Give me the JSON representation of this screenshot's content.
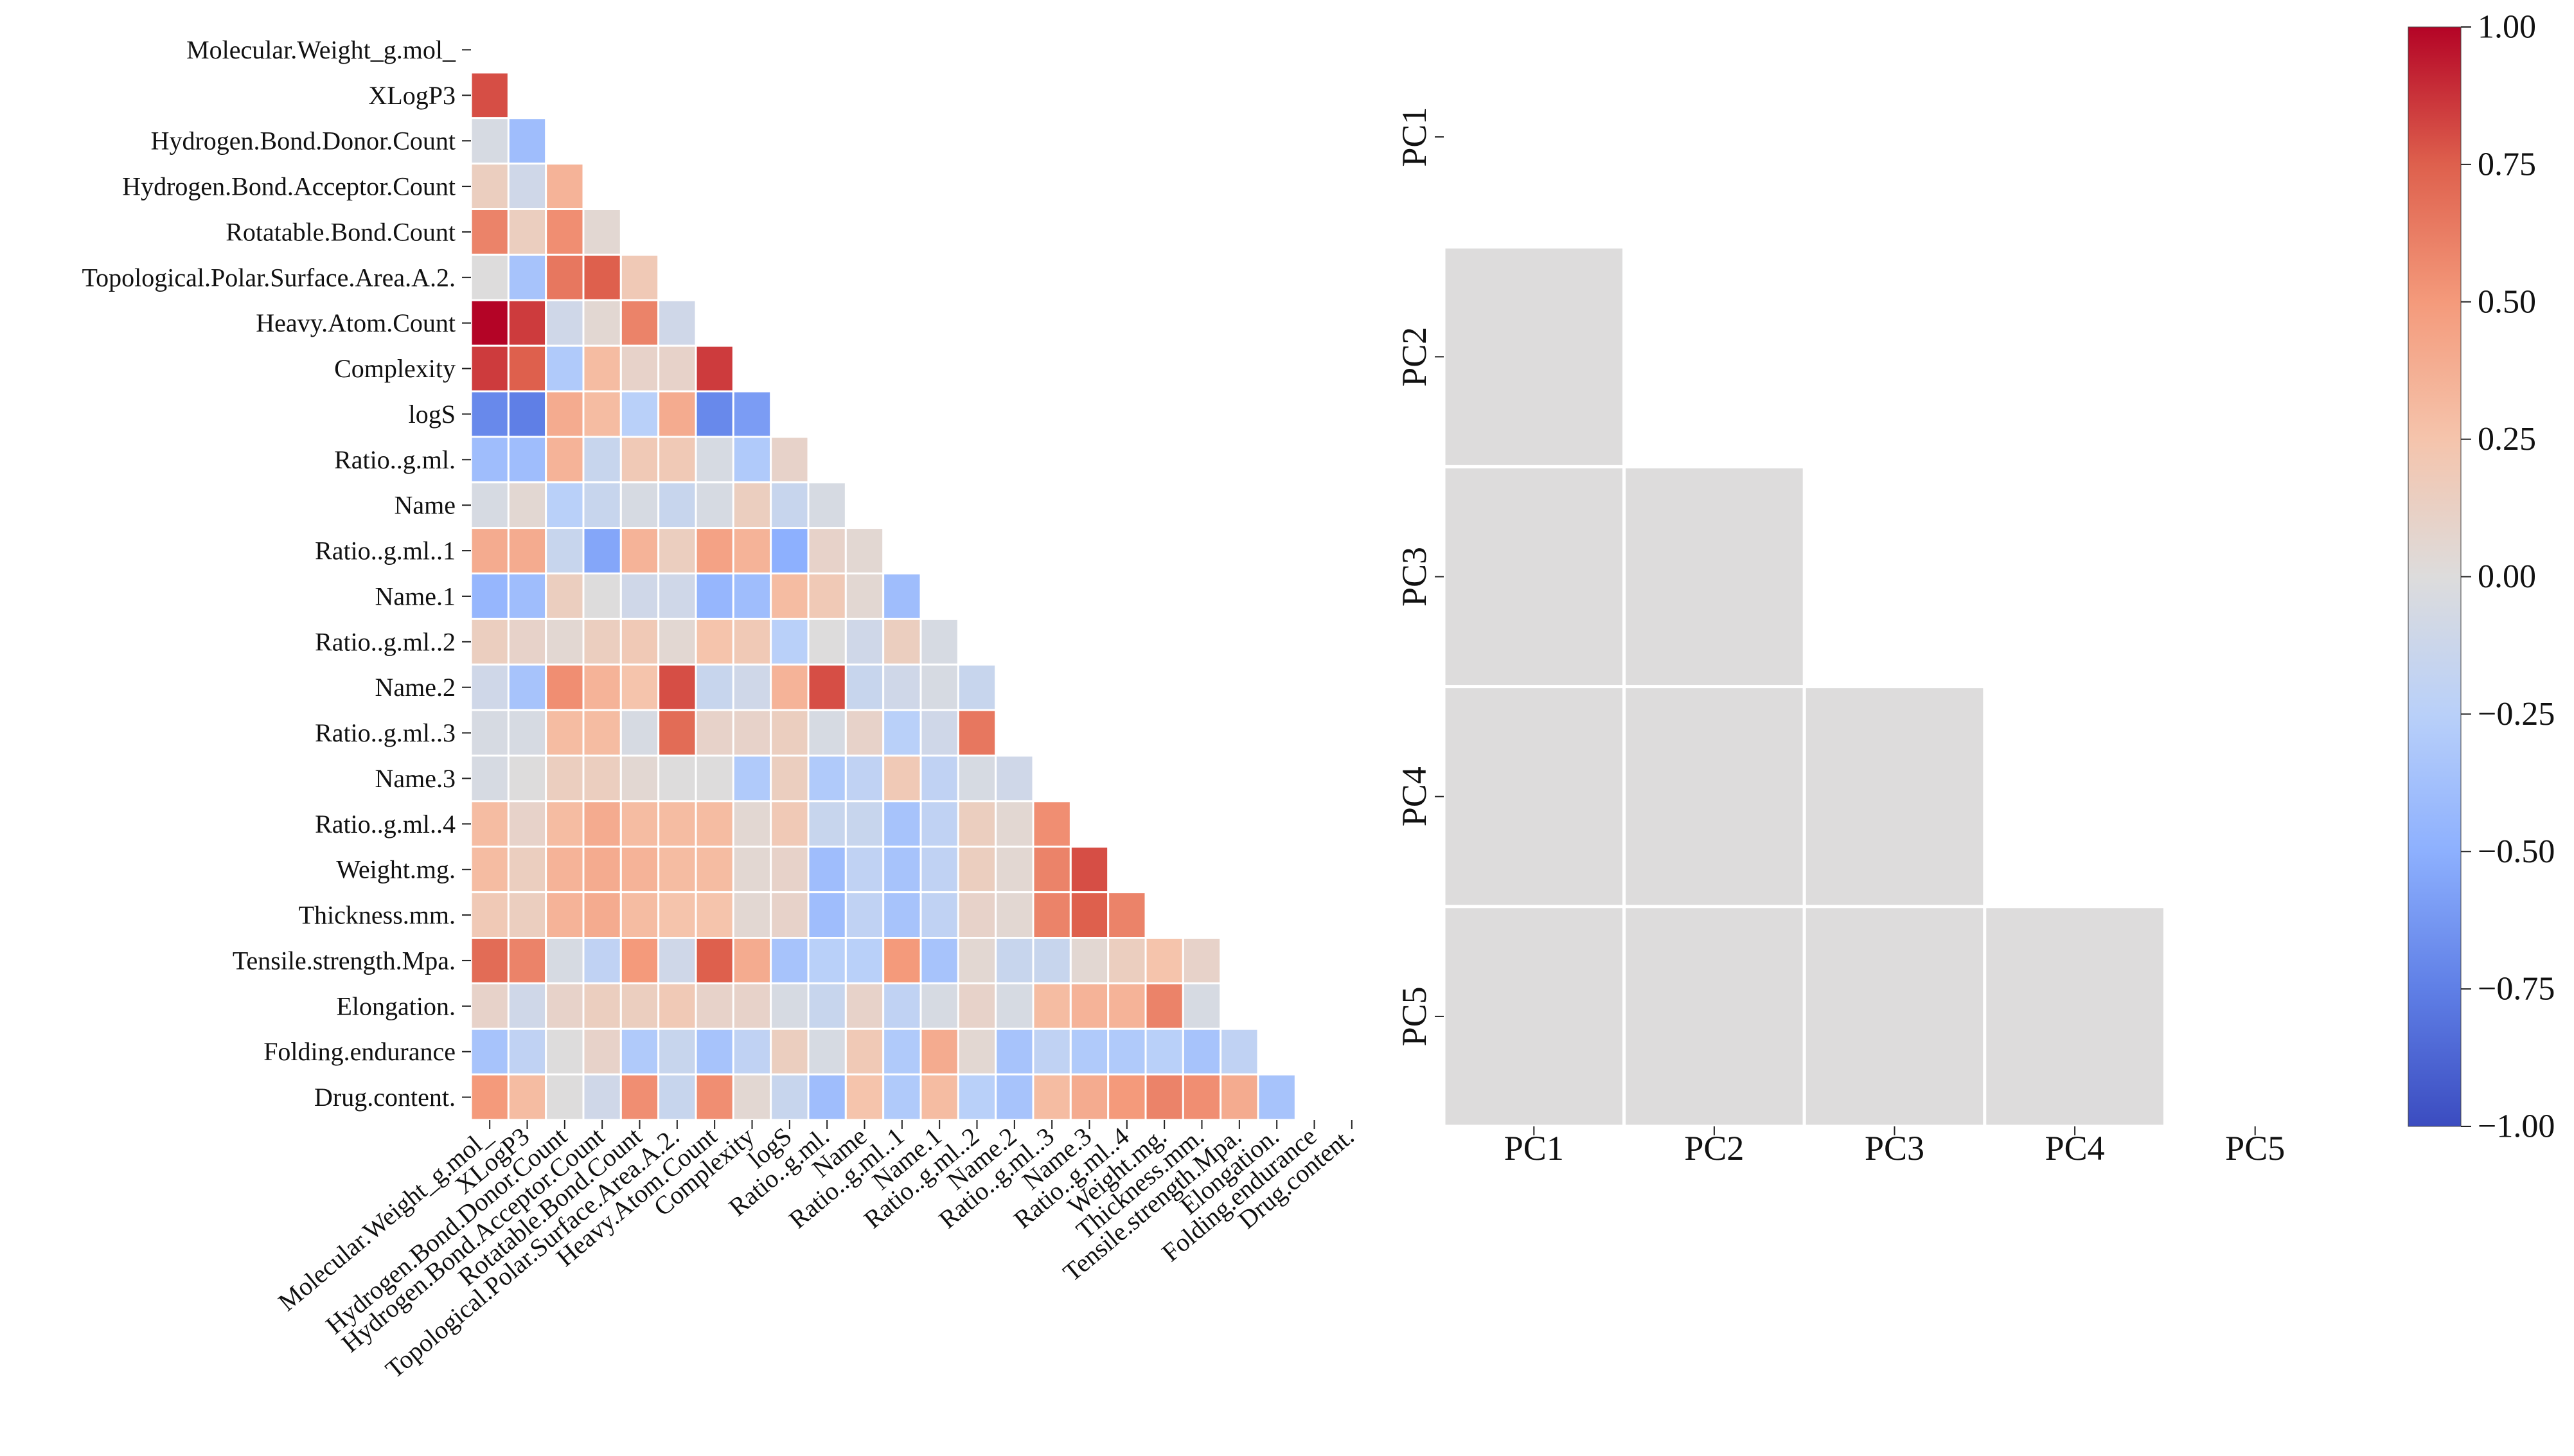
{
  "chart_data": [
    {
      "type": "heatmap",
      "title": "",
      "mask": "upper triangle including diagonal",
      "variables": [
        "Molecular.Weight_g.mol_",
        "XLogP3",
        "Hydrogen.Bond.Donor.Count",
        "Hydrogen.Bond.Acceptor.Count",
        "Rotatable.Bond.Count",
        "Topological.Polar.Surface.Area.A.2.",
        "Heavy.Atom.Count",
        "Complexity",
        "logS",
        "Ratio..g.ml.",
        "Name",
        "Ratio..g.ml..1",
        "Name.1",
        "Ratio..g.ml..2",
        "Name.2",
        "Ratio..g.ml..3",
        "Name.3",
        "Ratio..g.ml..4",
        "Weight.mg.",
        "Thickness.mm.",
        "Tensile.strength.Mpa.",
        "Elongation.",
        "Folding.endurance",
        "Drug.content."
      ],
      "lower_triangle_values": [
        [],
        [
          0.8
        ],
        [
          -0.05,
          -0.4
        ],
        [
          0.15,
          -0.1,
          0.35
        ],
        [
          0.6,
          0.15,
          0.55,
          0.05
        ],
        [
          0.0,
          -0.35,
          0.65,
          0.75,
          0.2
        ],
        [
          1.0,
          0.85,
          -0.1,
          0.05,
          0.6,
          -0.1
        ],
        [
          0.85,
          0.75,
          -0.3,
          0.3,
          0.1,
          0.1,
          0.85
        ],
        [
          -0.7,
          -0.75,
          0.4,
          0.3,
          -0.25,
          0.4,
          -0.7,
          -0.6
        ],
        [
          -0.4,
          -0.4,
          0.35,
          -0.15,
          0.2,
          0.2,
          -0.05,
          -0.3,
          0.1
        ],
        [
          -0.05,
          0.05,
          -0.25,
          -0.15,
          -0.05,
          -0.15,
          -0.05,
          0.15,
          -0.15,
          -0.05
        ],
        [
          0.4,
          0.4,
          -0.15,
          -0.55,
          0.35,
          0.15,
          0.45,
          0.35,
          -0.5,
          0.1,
          0.05
        ],
        [
          -0.45,
          -0.4,
          0.15,
          0.0,
          -0.1,
          -0.1,
          -0.45,
          -0.4,
          0.3,
          0.2,
          0.05,
          -0.4
        ],
        [
          0.15,
          0.1,
          0.05,
          0.15,
          0.2,
          0.05,
          0.25,
          0.2,
          -0.25,
          0.0,
          -0.1,
          0.15,
          -0.05
        ],
        [
          -0.1,
          -0.35,
          0.55,
          0.35,
          0.25,
          0.8,
          -0.15,
          -0.1,
          0.35,
          0.8,
          -0.15,
          -0.1,
          -0.05,
          -0.15
        ],
        [
          -0.05,
          -0.05,
          0.3,
          0.3,
          -0.05,
          0.7,
          0.1,
          0.1,
          0.15,
          -0.05,
          0.1,
          -0.25,
          -0.1,
          0.65
        ],
        [
          -0.05,
          0.0,
          0.15,
          0.15,
          0.05,
          0.0,
          0.0,
          -0.3,
          0.15,
          -0.3,
          -0.2,
          0.2,
          -0.2,
          -0.05,
          -0.1
        ],
        [
          0.3,
          0.1,
          0.3,
          0.4,
          0.3,
          0.3,
          0.3,
          0.05,
          0.2,
          -0.15,
          -0.15,
          -0.35,
          -0.2,
          0.15,
          0.05,
          0.55
        ],
        [
          0.3,
          0.15,
          0.35,
          0.4,
          0.35,
          0.3,
          0.3,
          0.05,
          0.1,
          -0.4,
          -0.2,
          -0.35,
          -0.2,
          0.15,
          0.05,
          0.6,
          0.8
        ],
        [
          0.2,
          0.15,
          0.35,
          0.4,
          0.3,
          0.25,
          0.25,
          0.05,
          0.1,
          -0.4,
          -0.2,
          -0.35,
          -0.2,
          0.1,
          0.05,
          0.6,
          0.75,
          0.6
        ],
        [
          0.7,
          0.6,
          -0.05,
          -0.2,
          0.5,
          -0.1,
          0.75,
          0.4,
          -0.35,
          -0.25,
          -0.25,
          0.5,
          -0.35,
          0.05,
          -0.15,
          -0.15,
          0.05,
          0.15,
          0.25,
          0.1
        ],
        [
          0.1,
          -0.1,
          0.1,
          0.15,
          0.15,
          0.2,
          0.1,
          0.1,
          -0.05,
          -0.15,
          0.1,
          -0.2,
          -0.05,
          0.1,
          -0.05,
          0.3,
          0.35,
          0.35,
          0.6,
          -0.05
        ],
        [
          -0.35,
          -0.2,
          0.0,
          0.1,
          -0.3,
          -0.15,
          -0.35,
          -0.2,
          0.15,
          -0.05,
          0.2,
          -0.3,
          0.4,
          0.05,
          -0.35,
          -0.2,
          -0.3,
          -0.3,
          -0.25,
          -0.35,
          -0.2
        ],
        [
          0.5,
          0.3,
          0.0,
          -0.1,
          0.55,
          -0.15,
          0.55,
          0.05,
          -0.15,
          -0.4,
          0.25,
          -0.3,
          0.3,
          -0.25,
          -0.35,
          0.3,
          0.4,
          0.5,
          0.6,
          0.55,
          0.4,
          -0.35
        ]
      ]
    },
    {
      "type": "heatmap",
      "title": "",
      "mask": "upper triangle including diagonal",
      "variables": [
        "PC1",
        "PC2",
        "PC3",
        "PC4",
        "PC5"
      ],
      "lower_triangle_values": [
        [],
        [
          0.0
        ],
        [
          0.0,
          0.0
        ],
        [
          0.0,
          0.0,
          0.0
        ],
        [
          0.0,
          0.0,
          0.0,
          0.0
        ]
      ]
    }
  ],
  "colorbar": {
    "colormap": "coolwarm",
    "vmin": -1.0,
    "vmax": 1.0,
    "ticks": [
      1.0,
      0.75,
      0.5,
      0.25,
      0.0,
      -0.25,
      -0.5,
      -0.75,
      -1.0
    ],
    "tick_labels": [
      "1.00",
      "0.75",
      "0.50",
      "0.25",
      "0.00",
      "−0.25",
      "−0.50",
      "−0.75",
      "−1.00"
    ]
  }
}
